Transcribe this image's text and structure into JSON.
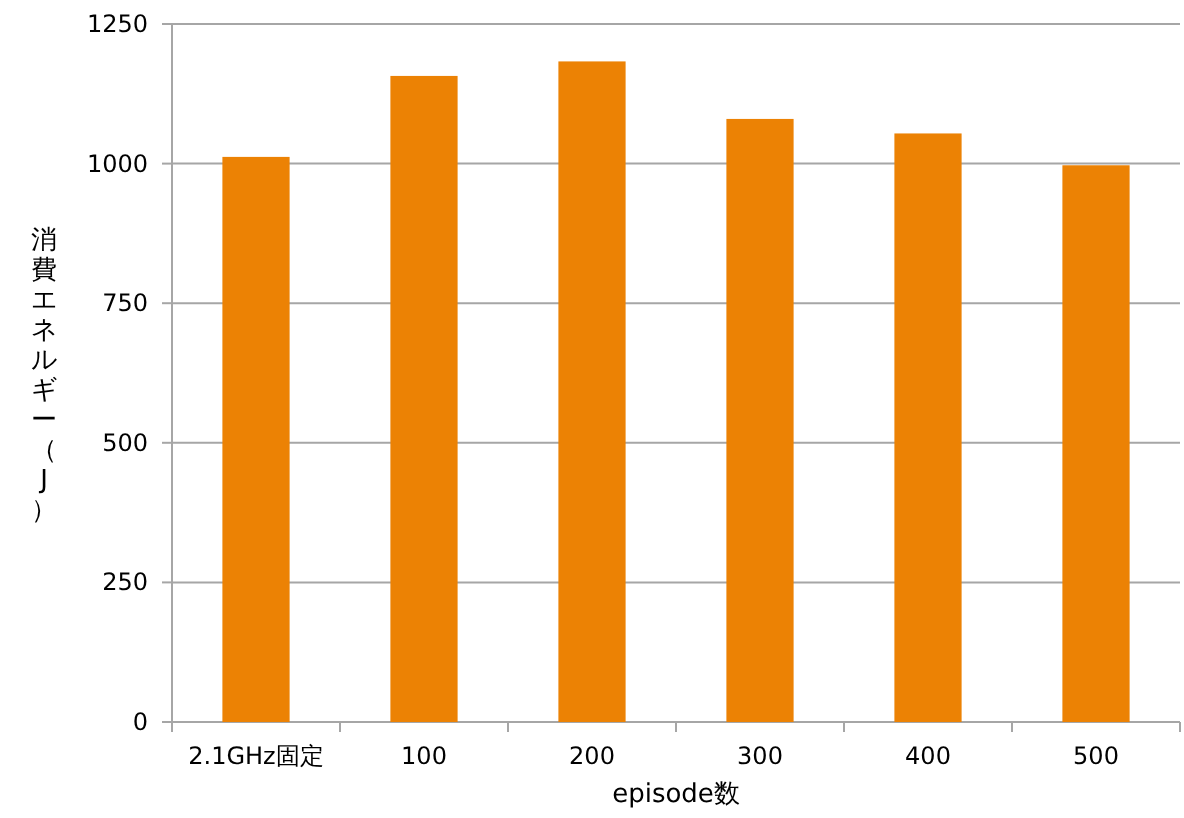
{
  "chart_data": {
    "type": "bar",
    "xlabel": "episode数",
    "ylabel": "消費エネルギー（J）",
    "categories": [
      "2.1GHz固定",
      "100",
      "200",
      "300",
      "400",
      "500"
    ],
    "values": [
      1012,
      1157,
      1183,
      1080,
      1054,
      997
    ],
    "color": "#ec8204",
    "ylim": [
      0,
      1250
    ],
    "yticks": [
      0,
      250,
      500,
      750,
      1000,
      1250
    ],
    "grid": "y"
  }
}
